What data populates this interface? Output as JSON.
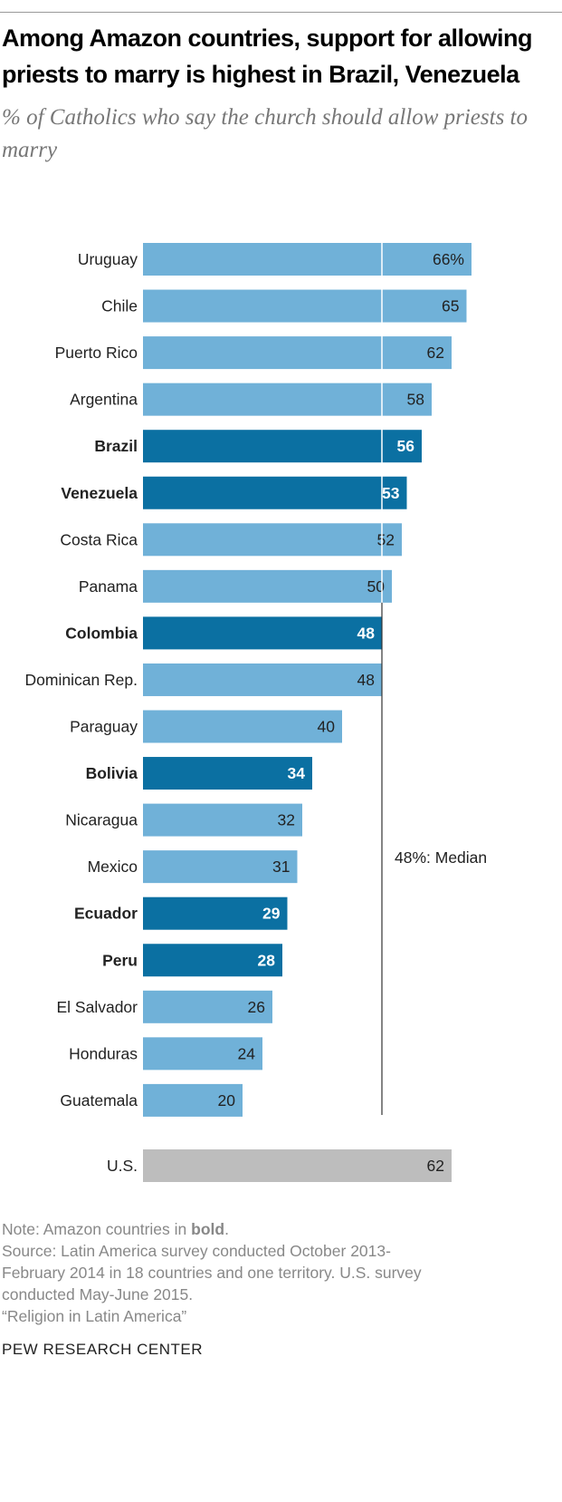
{
  "title": "Among Amazon countries, support for allowing priests to marry is highest in Brazil, Venezuela",
  "subtitle": "% of Catholics who say the church should allow priests to marry",
  "chart_data": {
    "type": "bar",
    "orientation": "horizontal",
    "categories": [
      "Uruguay",
      "Chile",
      "Puerto Rico",
      "Argentina",
      "Brazil",
      "Venezuela",
      "Costa Rica",
      "Panama",
      "Colombia",
      "Dominican Rep.",
      "Paraguay",
      "Bolivia",
      "Nicaragua",
      "Mexico",
      "Ecuador",
      "Peru",
      "El Salvador",
      "Honduras",
      "Guatemala",
      "U.S."
    ],
    "values": [
      66,
      65,
      62,
      58,
      56,
      53,
      52,
      50,
      48,
      48,
      40,
      34,
      32,
      31,
      29,
      28,
      26,
      24,
      20,
      62
    ],
    "value_labels": [
      "66%",
      "65",
      "62",
      "58",
      "56",
      "53",
      "52",
      "50",
      "48",
      "48",
      "40",
      "34",
      "32",
      "31",
      "29",
      "28",
      "26",
      "24",
      "20",
      "62"
    ],
    "amazon": [
      false,
      false,
      false,
      false,
      true,
      true,
      false,
      false,
      true,
      false,
      false,
      true,
      false,
      false,
      true,
      true,
      false,
      false,
      false,
      false
    ],
    "median": {
      "value": 48,
      "label": "48%: Median"
    },
    "colors": {
      "default": "#70b1d8",
      "amazon": "#0b70a2",
      "us": "#bdbdbd"
    },
    "xlim": [
      0,
      70
    ]
  },
  "note": {
    "prefix": "Note: Amazon countries in ",
    "bold": "bold",
    "suffix": ".",
    "source_lines": [
      "Source: Latin America survey conducted October 2013-",
      "February 2014 in 18 countries and one territory. U.S. survey",
      "conducted May-June 2015."
    ],
    "report": "“Religion in Latin America”"
  },
  "brand": "PEW RESEARCH CENTER"
}
